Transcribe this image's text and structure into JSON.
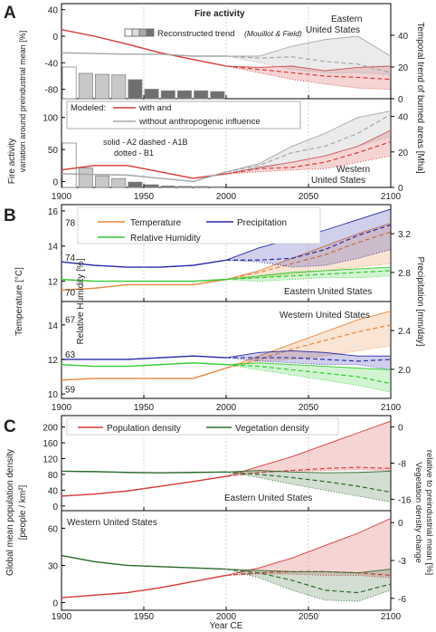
{
  "x_axis": {
    "label": "Year CE",
    "ticks": [
      1900,
      1950,
      2000,
      2050,
      2100
    ],
    "range": [
      1900,
      2100
    ]
  },
  "panel_letters": [
    "A",
    "B",
    "C"
  ],
  "colors": {
    "red": "#d83a3a",
    "gray": "#a6a6a6",
    "orange": "#e8863a",
    "blue": "#2a2aa8",
    "green": "#33cc33",
    "dkgreen": "#2e6b2e",
    "bar": "#c8c8c8",
    "bar_dark": "#6f6f6f"
  },
  "chart_data": [
    {
      "type": "line",
      "title": "Fire activity",
      "region": "Eastern United States",
      "ylabel": "Fire activity variation around preindustrial mean [%]",
      "y2label": "Temporal trend of burned areas [Mha]",
      "ylim": [
        -90,
        45
      ],
      "yticks": [
        -80,
        -40,
        0,
        40
      ],
      "y2lim": [
        0,
        60
      ],
      "y2ticks": [
        0,
        20,
        40
      ],
      "legend": {
        "reconstructed": "Reconstructed trend",
        "source": "(Mouillot & Field)"
      },
      "reconstructed_bars": {
        "decades": [
          1900,
          1910,
          1920,
          1930,
          1940,
          1950,
          1960,
          1970,
          1980,
          1990
        ],
        "values": [
          20,
          16,
          15.4,
          15,
          12,
          6,
          5,
          5,
          5,
          4.5
        ]
      },
      "series": [
        {
          "name": "with",
          "x": [
            1900,
            1920,
            1940,
            1960,
            1980,
            2000,
            2020,
            2040,
            2060,
            2080,
            2100
          ],
          "y": [
            10,
            0,
            -12,
            -25,
            -35,
            -45,
            -50,
            -55,
            -60,
            -62,
            -65
          ],
          "low": [
            10,
            0,
            -12,
            -25,
            -35,
            -45,
            -55,
            -65,
            -72,
            -78,
            -80
          ],
          "high": [
            10,
            0,
            -12,
            -25,
            -35,
            -45,
            -47,
            -45,
            -52,
            -47,
            -45
          ]
        },
        {
          "name": "without anthropogenic influence",
          "x": [
            1900,
            1920,
            1940,
            1960,
            1980,
            2000,
            2020,
            2040,
            2060,
            2080,
            2100
          ],
          "y": [
            -25,
            -26,
            -27,
            -27,
            -30,
            -30,
            -33,
            -31,
            -38,
            -42,
            -55
          ],
          "low": [
            -25,
            -26,
            -27,
            -27,
            -30,
            -30,
            -40,
            -50,
            -55,
            -55,
            -58
          ],
          "high": [
            -25,
            -26,
            -27,
            -27,
            -30,
            -30,
            -30,
            -15,
            -5,
            0,
            -30
          ]
        }
      ]
    },
    {
      "type": "line",
      "region": "Western United States",
      "legend": {
        "modeled": "Modeled:",
        "with": "with and",
        "without": "without anthropogenic influence",
        "note1": "solid - A2    dashed - A1B",
        "note2": "dotted - B1"
      },
      "ylim": [
        -5,
        125
      ],
      "yticks": [
        0,
        50,
        100
      ],
      "y2lim": [
        0,
        50
      ],
      "y2ticks": [
        0,
        20,
        40
      ],
      "reconstructed_bars": {
        "decades": [
          1900,
          1910,
          1920,
          1930,
          1940,
          1950,
          1960,
          1970,
          1980,
          1990
        ],
        "values": [
          25,
          11,
          6.5,
          5,
          3,
          1.5,
          0.8,
          0.6,
          0.5,
          0.4
        ]
      },
      "series": [
        {
          "name": "with",
          "x": [
            1900,
            1920,
            1940,
            1960,
            1980,
            2000,
            2020,
            2040,
            2060,
            2080,
            2100
          ],
          "y": [
            18,
            25,
            25,
            15,
            5,
            12,
            20,
            22,
            30,
            45,
            62
          ],
          "low": [
            18,
            25,
            25,
            15,
            5,
            12,
            15,
            18,
            20,
            30,
            40
          ],
          "high": [
            18,
            25,
            25,
            15,
            5,
            12,
            22,
            30,
            40,
            55,
            80
          ]
        },
        {
          "name": "without anthropogenic influence",
          "x": [
            1900,
            1920,
            1940,
            1960,
            1980,
            2000,
            2020,
            2040,
            2060,
            2080,
            2100
          ],
          "y": [
            12,
            11,
            10,
            5,
            0,
            15,
            25,
            45,
            55,
            75,
            105
          ],
          "low": [
            12,
            11,
            10,
            5,
            0,
            15,
            20,
            30,
            40,
            55,
            70
          ],
          "high": [
            12,
            11,
            10,
            5,
            0,
            15,
            28,
            55,
            75,
            100,
            110
          ]
        }
      ]
    },
    {
      "type": "line",
      "region": "Eastern United States",
      "ylabel": "Temperature [°C]",
      "y2label": "Precipitation [mm/day]",
      "rhlabel": "Relative Humidity [%]",
      "ylim": [
        11,
        16.2
      ],
      "yticks": [
        12,
        14,
        16
      ],
      "rh_ticks": [
        "78",
        "74",
        "70"
      ],
      "y2ticks": [
        "3.2",
        "2.8"
      ],
      "series": [
        {
          "name": "Temperature",
          "x": [
            1900,
            1920,
            1940,
            1960,
            1980,
            2000,
            2020,
            2040,
            2060,
            2080,
            2100
          ],
          "y": [
            11.5,
            11.6,
            11.8,
            11.8,
            11.8,
            12.1,
            12.5,
            13.0,
            13.5,
            14.2,
            14.8
          ],
          "low": [
            11.5,
            11.6,
            11.8,
            11.8,
            11.8,
            12.1,
            12.2,
            12.4,
            12.6,
            12.8,
            13.0
          ],
          "high": [
            11.5,
            11.6,
            11.8,
            11.8,
            11.8,
            12.1,
            12.6,
            13.3,
            14.0,
            14.7,
            15.3
          ]
        },
        {
          "name": "Precipitation",
          "x": [
            1900,
            1920,
            1940,
            1960,
            1980,
            2000,
            2020,
            2040,
            2060,
            2080,
            2100
          ],
          "y": [
            13.1,
            12.9,
            12.8,
            12.8,
            12.9,
            13.2,
            13.2,
            13.3,
            13.8,
            14.6,
            15.2
          ],
          "low": [
            13.1,
            12.9,
            12.8,
            12.8,
            12.9,
            13.2,
            13.1,
            12.8,
            12.9,
            13.3,
            13.8
          ],
          "high": [
            13.1,
            12.9,
            12.8,
            12.8,
            12.9,
            13.2,
            13.9,
            14.4,
            14.9,
            15.5,
            16.1
          ]
        },
        {
          "name": "Relative Humidity",
          "x": [
            1900,
            1920,
            1940,
            1960,
            1980,
            2000,
            2020,
            2040,
            2060,
            2080,
            2100
          ],
          "y": [
            12.1,
            12.0,
            12.0,
            12.0,
            12.0,
            12.1,
            12.2,
            12.3,
            12.4,
            12.5,
            12.6
          ],
          "low": [
            12.1,
            12.0,
            12.0,
            12.0,
            12.0,
            12.1,
            12.0,
            12.1,
            12.2,
            12.2,
            12.3
          ],
          "high": [
            12.1,
            12.0,
            12.0,
            12.0,
            12.0,
            12.1,
            12.3,
            12.5,
            12.6,
            12.7,
            12.8
          ]
        }
      ]
    },
    {
      "type": "line",
      "region": "Western United States",
      "ylim": [
        9.9,
        15.2
      ],
      "yticks": [
        10,
        12,
        14
      ],
      "rh_ticks": [
        "67",
        "63",
        "59"
      ],
      "y2ticks": [
        "2.4",
        "2.0"
      ],
      "series": [
        {
          "name": "Temperature",
          "x": [
            1900,
            1920,
            1940,
            1960,
            1980,
            2000,
            2020,
            2040,
            2060,
            2080,
            2100
          ],
          "y": [
            10.8,
            10.9,
            10.9,
            10.9,
            10.9,
            11.5,
            12.0,
            12.6,
            13.1,
            13.6,
            14.0
          ],
          "low": [
            10.8,
            10.9,
            10.9,
            10.9,
            10.9,
            11.5,
            11.9,
            12.0,
            12.2,
            12.5,
            12.8
          ],
          "high": [
            10.8,
            10.9,
            10.9,
            10.9,
            10.9,
            11.5,
            12.2,
            12.9,
            13.6,
            14.3,
            14.8
          ]
        },
        {
          "name": "Precipitation",
          "x": [
            1900,
            1920,
            1940,
            1960,
            1980,
            2000,
            2020,
            2040,
            2060,
            2080,
            2100
          ],
          "y": [
            12.0,
            12.0,
            12.0,
            12.1,
            12.2,
            12.1,
            12.1,
            12.1,
            12.0,
            11.9,
            12.0
          ],
          "low": [
            12.0,
            12.0,
            12.0,
            12.1,
            12.2,
            12.1,
            11.9,
            11.8,
            11.7,
            11.7,
            11.4
          ],
          "high": [
            12.0,
            12.0,
            12.0,
            12.1,
            12.2,
            12.1,
            12.4,
            12.5,
            12.4,
            12.2,
            12.2
          ]
        },
        {
          "name": "Relative Humidity",
          "x": [
            1900,
            1920,
            1940,
            1960,
            1980,
            2000,
            2020,
            2040,
            2060,
            2080,
            2100
          ],
          "y": [
            11.7,
            11.6,
            11.6,
            11.7,
            11.8,
            11.7,
            11.6,
            11.4,
            11.2,
            11.0,
            10.6
          ],
          "low": [
            11.7,
            11.6,
            11.6,
            11.7,
            11.8,
            11.7,
            11.4,
            11.1,
            10.8,
            10.5,
            10.1
          ],
          "high": [
            11.7,
            11.6,
            11.6,
            11.7,
            11.8,
            11.7,
            11.8,
            11.7,
            11.6,
            11.5,
            11.4
          ]
        }
      ]
    },
    {
      "type": "line",
      "region": "Eastern United States",
      "ylabel": "Global mean population density [people / km²]",
      "y2label": "Vegetation density change relative to preindustrial mean [%]",
      "ylim": [
        -5,
        222
      ],
      "yticks": [
        0,
        40,
        80,
        120,
        160,
        200
      ],
      "y2ticks": [
        "0",
        "-8",
        "-16"
      ],
      "series": [
        {
          "name": "Population density",
          "x": [
            1900,
            1920,
            1940,
            1960,
            1980,
            2000,
            2020,
            2040,
            2060,
            2080,
            2100
          ],
          "y": [
            25,
            30,
            38,
            50,
            62,
            75,
            85,
            90,
            95,
            98,
            95
          ],
          "low": [
            25,
            30,
            38,
            50,
            62,
            75,
            85,
            88,
            90,
            92,
            90
          ],
          "high": [
            25,
            30,
            38,
            50,
            62,
            75,
            100,
            125,
            155,
            185,
            215
          ]
        },
        {
          "name": "Vegetation density",
          "x": [
            1900,
            1920,
            1940,
            1960,
            1980,
            2000,
            2020,
            2040,
            2060,
            2080,
            2100
          ],
          "y": [
            88,
            87,
            85,
            84,
            85,
            86,
            80,
            72,
            62,
            50,
            35
          ],
          "low": [
            88,
            87,
            85,
            84,
            85,
            86,
            72,
            55,
            40,
            25,
            10
          ],
          "high": [
            88,
            87,
            85,
            84,
            85,
            86,
            90,
            86,
            84,
            85,
            88
          ]
        }
      ]
    },
    {
      "type": "line",
      "region": "Western United States",
      "ylim": [
        -4,
        72
      ],
      "yticks": [
        0,
        30,
        60
      ],
      "y2ticks": [
        "0",
        "-3",
        "-6"
      ],
      "series": [
        {
          "name": "Population density",
          "x": [
            1900,
            1920,
            1940,
            1960,
            1980,
            2000,
            2020,
            2040,
            2060,
            2080,
            2100
          ],
          "y": [
            4,
            6,
            8,
            12,
            17,
            22,
            24,
            25,
            25,
            24,
            22
          ],
          "low": [
            4,
            6,
            8,
            12,
            17,
            22,
            23,
            23,
            22,
            22,
            20
          ],
          "high": [
            4,
            6,
            8,
            12,
            17,
            22,
            28,
            36,
            46,
            56,
            68
          ]
        },
        {
          "name": "Vegetation density",
          "x": [
            1900,
            1920,
            1940,
            1960,
            1980,
            2000,
            2020,
            2040,
            2060,
            2080,
            2100
          ],
          "y": [
            38,
            33,
            30,
            29,
            28,
            27,
            24,
            18,
            10,
            8,
            15
          ],
          "low": [
            38,
            33,
            30,
            29,
            28,
            27,
            20,
            10,
            2,
            1,
            10
          ],
          "high": [
            38,
            33,
            30,
            29,
            28,
            27,
            26,
            25,
            25,
            24,
            27
          ]
        }
      ]
    }
  ],
  "panelC_legend": {
    "pop": "Population density",
    "veg": "Vegetation density"
  }
}
